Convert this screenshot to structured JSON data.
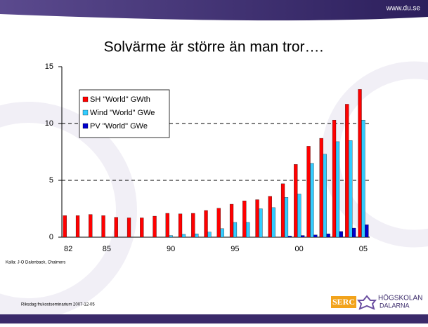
{
  "chart_data": {
    "type": "bar",
    "title": "Solvärme är större än man tror….",
    "categories": [
      "82",
      null,
      null,
      "85",
      null,
      null,
      null,
      null,
      "90",
      null,
      null,
      null,
      null,
      "95",
      null,
      null,
      null,
      null,
      "00",
      null,
      null,
      null,
      null,
      "05"
    ],
    "series": [
      {
        "name": "SH \"World\" GWth",
        "color": "#ff0000",
        "values": [
          1.9,
          1.9,
          2.0,
          1.9,
          1.75,
          1.7,
          1.7,
          1.85,
          2.1,
          2.05,
          2.1,
          2.35,
          2.55,
          2.9,
          3.2,
          3.3,
          3.6,
          4.7,
          6.4,
          8.0,
          8.7,
          10.3,
          11.7,
          13.0
        ]
      },
      {
        "name": "Wind \"World\" GWe",
        "color": "#33ccff",
        "values": [
          0,
          0,
          0,
          0,
          0,
          0,
          0,
          0,
          0.15,
          0.25,
          0.3,
          0.45,
          0.75,
          1.3,
          1.3,
          2.5,
          2.6,
          3.5,
          3.8,
          6.5,
          7.3,
          8.4,
          8.5,
          10.3
        ]
      },
      {
        "name": "PV \"World\" GWe",
        "color": "#0000cc",
        "values": [
          0,
          0,
          0,
          0,
          0,
          0,
          0,
          0,
          0,
          0,
          0,
          0,
          0,
          0,
          0,
          0,
          0,
          0.1,
          0.15,
          0.2,
          0.3,
          0.5,
          0.8,
          1.1
        ]
      }
    ],
    "ylim": [
      0,
      15
    ],
    "yticks": [
      0,
      5,
      10,
      15
    ],
    "grid": true,
    "legend": "upper-left"
  },
  "slide": {
    "url": "www.du.se",
    "source": "Kalla: J-O Dalenback, Chalmers",
    "footer": "Riksdag frukostseminarium 2007-12-05",
    "logo_serc": "SERC",
    "logo_name": [
      "HÖGSKOLAN",
      "DALARNA"
    ]
  }
}
